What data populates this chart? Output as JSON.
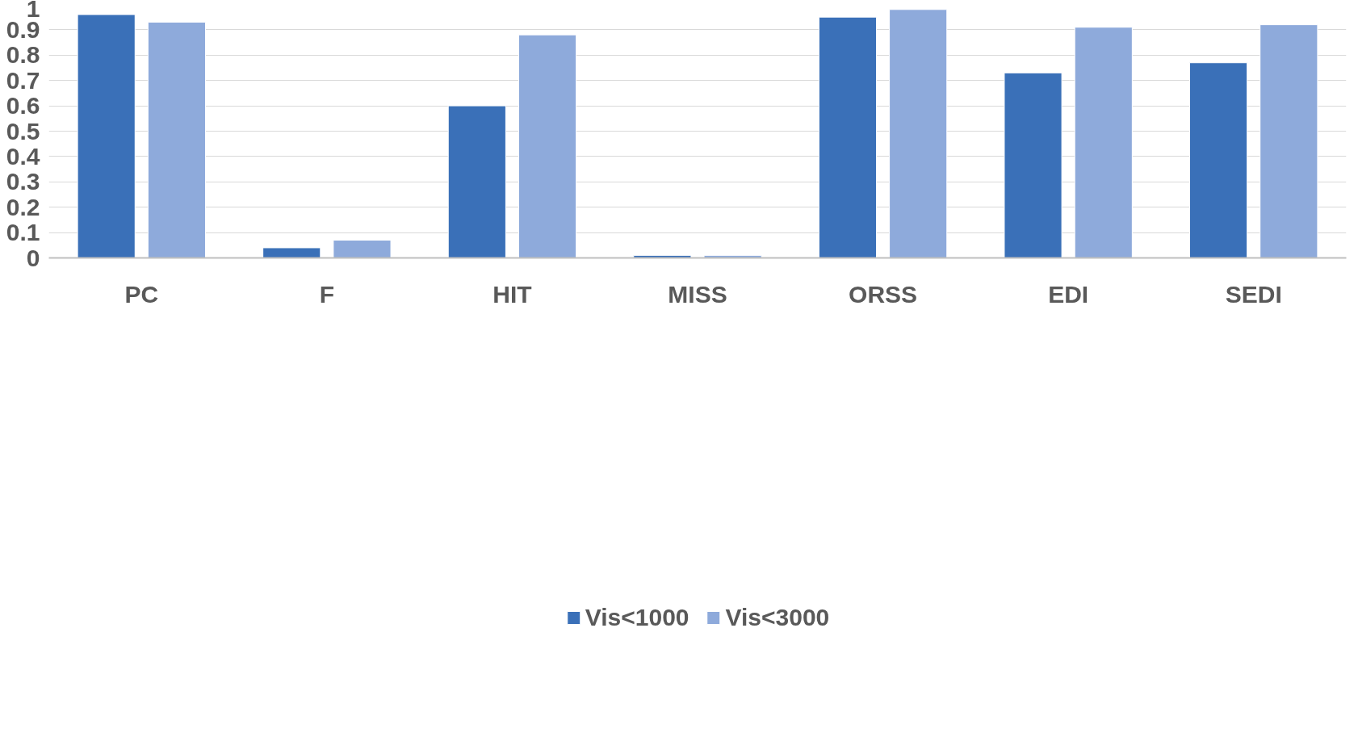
{
  "chart_data": {
    "type": "bar",
    "categories": [
      "PC",
      "F",
      "HIT",
      "MISS",
      "ORSS",
      "EDI",
      "SEDI"
    ],
    "series": [
      {
        "name": "Vis<1000",
        "color": "#3a70b8",
        "values": [
          0.96,
          0.04,
          0.6,
          0.01,
          0.95,
          0.73,
          0.77
        ]
      },
      {
        "name": "Vis<3000",
        "color": "#8eaadb",
        "values": [
          0.93,
          0.07,
          0.88,
          0.01,
          0.98,
          0.91,
          0.92
        ]
      }
    ],
    "ylim": [
      0,
      1
    ],
    "yticks": [
      0,
      0.1,
      0.2,
      0.3,
      0.4,
      0.5,
      0.6,
      0.7,
      0.8,
      0.9,
      1
    ],
    "grid": "y",
    "legend": "bottom"
  }
}
